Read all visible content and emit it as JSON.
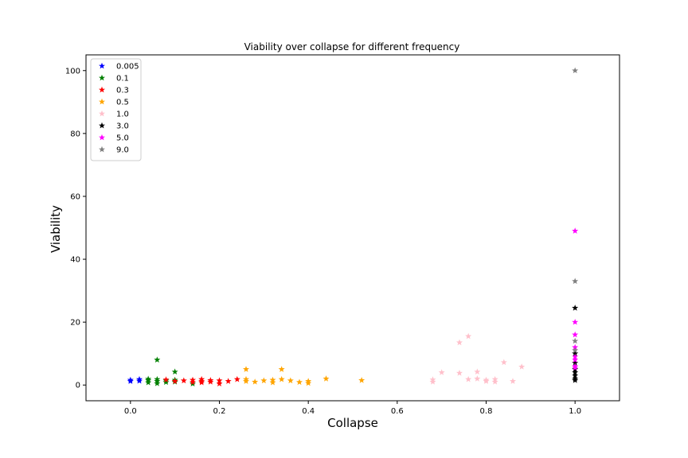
{
  "chart_data": {
    "type": "scatter",
    "title": "Viability over collapse for different frequency",
    "xlabel": "Collapse",
    "ylabel": "Viability",
    "xlim": [
      -0.1,
      1.1
    ],
    "ylim": [
      -5,
      105
    ],
    "xticks": [
      0.0,
      0.2,
      0.4,
      0.6,
      0.8,
      1.0
    ],
    "xtick_labels": [
      "0.0",
      "0.2",
      "0.4",
      "0.6",
      "0.8",
      "1.0"
    ],
    "yticks": [
      0,
      20,
      40,
      60,
      80,
      100
    ],
    "ytick_labels": [
      "0",
      "20",
      "40",
      "60",
      "80",
      "100"
    ],
    "grid": false,
    "legend_position": "top-left",
    "marker": "star",
    "series": [
      {
        "name": "0.005",
        "color": "#0000ff",
        "points": [
          [
            0.0,
            1.6
          ],
          [
            0.0,
            1.2
          ],
          [
            0.02,
            1.8
          ],
          [
            0.02,
            1.3
          ]
        ]
      },
      {
        "name": "0.1",
        "color": "#008000",
        "points": [
          [
            0.04,
            1.5
          ],
          [
            0.04,
            0.8
          ],
          [
            0.04,
            1.9
          ],
          [
            0.06,
            8.0
          ],
          [
            0.06,
            1.2
          ],
          [
            0.06,
            0.5
          ],
          [
            0.06,
            1.8
          ],
          [
            0.08,
            0.9
          ],
          [
            0.08,
            1.4
          ],
          [
            0.1,
            4.2
          ],
          [
            0.1,
            1.6
          ],
          [
            0.1,
            1.0
          ],
          [
            0.14,
            0.4
          ]
        ]
      },
      {
        "name": "0.3",
        "color": "#ff0000",
        "points": [
          [
            0.08,
            1.7
          ],
          [
            0.1,
            1.2
          ],
          [
            0.12,
            1.4
          ],
          [
            0.14,
            1.6
          ],
          [
            0.14,
            0.9
          ],
          [
            0.16,
            1.8
          ],
          [
            0.16,
            0.8
          ],
          [
            0.16,
            1.2
          ],
          [
            0.18,
            1.5
          ],
          [
            0.18,
            1.0
          ],
          [
            0.2,
            1.4
          ],
          [
            0.2,
            0.4
          ],
          [
            0.22,
            1.2
          ],
          [
            0.24,
            1.8
          ]
        ]
      },
      {
        "name": "0.5",
        "color": "#ffa500",
        "points": [
          [
            0.26,
            5.0
          ],
          [
            0.26,
            1.8
          ],
          [
            0.26,
            1.2
          ],
          [
            0.28,
            1.0
          ],
          [
            0.3,
            1.4
          ],
          [
            0.32,
            1.6
          ],
          [
            0.32,
            0.8
          ],
          [
            0.34,
            5.0
          ],
          [
            0.34,
            1.8
          ],
          [
            0.36,
            1.4
          ],
          [
            0.38,
            0.9
          ],
          [
            0.4,
            1.2
          ],
          [
            0.4,
            0.6
          ],
          [
            0.44,
            2.0
          ],
          [
            0.52,
            1.5
          ]
        ]
      },
      {
        "name": "1.0",
        "color": "#ffc0cb",
        "points": [
          [
            0.68,
            1.7
          ],
          [
            0.68,
            1.0
          ],
          [
            0.7,
            4.0
          ],
          [
            0.74,
            13.5
          ],
          [
            0.74,
            3.8
          ],
          [
            0.76,
            15.5
          ],
          [
            0.76,
            1.8
          ],
          [
            0.78,
            4.2
          ],
          [
            0.78,
            2.0
          ],
          [
            0.8,
            1.6
          ],
          [
            0.8,
            1.2
          ],
          [
            0.82,
            1.8
          ],
          [
            0.82,
            1.0
          ],
          [
            0.84,
            7.2
          ],
          [
            0.86,
            1.2
          ],
          [
            0.88,
            5.8
          ]
        ]
      },
      {
        "name": "3.0",
        "color": "#000000",
        "points": [
          [
            1.0,
            24.5
          ],
          [
            1.0,
            10.0
          ],
          [
            1.0,
            7.0
          ],
          [
            1.0,
            5.0
          ],
          [
            1.0,
            4.0
          ],
          [
            1.0,
            3.0
          ],
          [
            1.0,
            2.0
          ],
          [
            1.0,
            1.5
          ]
        ]
      },
      {
        "name": "5.0",
        "color": "#ff00ff",
        "points": [
          [
            1.0,
            49.0
          ],
          [
            1.0,
            20.0
          ],
          [
            1.0,
            16.0
          ],
          [
            1.0,
            12.0
          ],
          [
            1.0,
            9.0
          ],
          [
            1.0,
            8.0
          ],
          [
            1.0,
            6.0
          ],
          [
            1.0,
            5.5
          ]
        ]
      },
      {
        "name": "9.0",
        "color": "#808080",
        "points": [
          [
            1.0,
            100.0
          ],
          [
            1.0,
            33.0
          ],
          [
            1.0,
            14.0
          ],
          [
            1.0,
            11.0
          ]
        ]
      }
    ]
  }
}
